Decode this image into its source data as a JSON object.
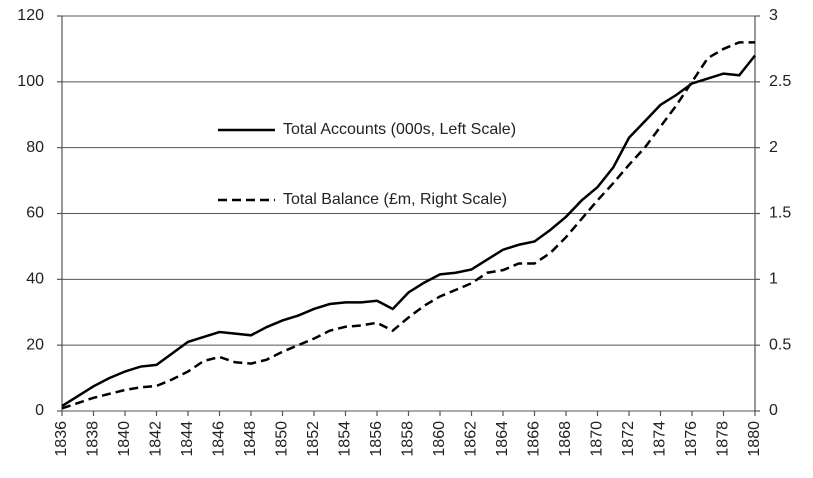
{
  "chart_data": {
    "type": "line",
    "x": [
      1836,
      1837,
      1838,
      1839,
      1840,
      1841,
      1842,
      1843,
      1844,
      1845,
      1846,
      1847,
      1848,
      1849,
      1850,
      1851,
      1852,
      1853,
      1854,
      1855,
      1856,
      1857,
      1858,
      1859,
      1860,
      1861,
      1862,
      1863,
      1864,
      1865,
      1866,
      1867,
      1868,
      1869,
      1870,
      1871,
      1872,
      1873,
      1874,
      1875,
      1876,
      1877,
      1878,
      1879,
      1880
    ],
    "xlim": [
      1836,
      1880
    ],
    "xticks": [
      1836,
      1838,
      1840,
      1842,
      1844,
      1846,
      1848,
      1850,
      1852,
      1854,
      1856,
      1858,
      1860,
      1862,
      1864,
      1866,
      1868,
      1870,
      1872,
      1874,
      1876,
      1878,
      1880
    ],
    "series": [
      {
        "name": "Total Accounts (000s, Left Scale)",
        "color": "#000000",
        "dash": false,
        "axis": "y",
        "values": [
          1.5,
          4.5,
          7.5,
          10,
          12,
          13.5,
          14,
          17.5,
          21,
          22.5,
          24,
          23.5,
          23,
          25.5,
          27.5,
          29,
          31,
          32.5,
          33,
          33,
          33.5,
          31,
          36,
          39,
          41.5,
          42,
          43,
          46,
          49,
          50.5,
          51.5,
          55,
          59,
          64,
          68,
          74,
          83,
          88,
          93,
          96,
          99.5,
          101,
          102.5,
          102,
          108
        ]
      },
      {
        "name": "Total Balance (£m, Right Scale)",
        "color": "#000000",
        "dash": true,
        "axis": "y2",
        "values": [
          0.02,
          0.06,
          0.1,
          0.13,
          0.16,
          0.18,
          0.19,
          0.24,
          0.3,
          0.38,
          0.41,
          0.37,
          0.36,
          0.39,
          0.45,
          0.5,
          0.55,
          0.61,
          0.64,
          0.65,
          0.67,
          0.61,
          0.71,
          0.8,
          0.87,
          0.92,
          0.97,
          1.05,
          1.07,
          1.12,
          1.12,
          1.2,
          1.32,
          1.46,
          1.6,
          1.73,
          1.87,
          2.0,
          2.16,
          2.32,
          2.5,
          2.68,
          2.75,
          2.8,
          2.8
        ]
      }
    ],
    "ylim": [
      0,
      120
    ],
    "yticks": [
      0,
      20,
      40,
      60,
      80,
      100,
      120
    ],
    "y2lim": [
      0,
      3
    ],
    "y2ticks": [
      0,
      0.5,
      1,
      1.5,
      2,
      2.5,
      3
    ],
    "grid": true
  }
}
